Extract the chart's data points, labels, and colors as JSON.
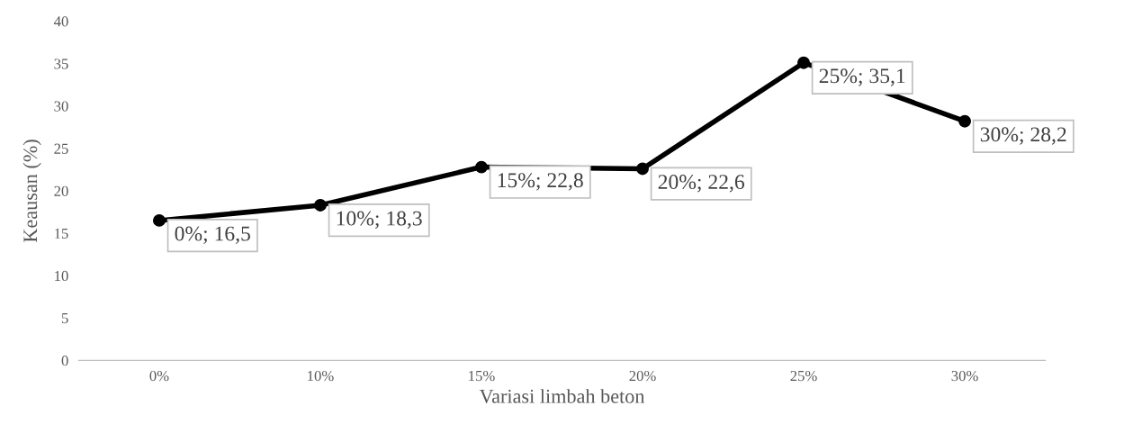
{
  "chart_data": {
    "type": "line",
    "xlabel": "Variasi limbah beton",
    "ylabel": "Keausan (%)",
    "categories": [
      "0%",
      "10%",
      "15%",
      "20%",
      "25%",
      "30%"
    ],
    "series": [
      {
        "color": "#000000",
        "values": [
          16.5,
          18.3,
          22.8,
          22.6,
          35.1,
          28.2
        ],
        "value_labels": [
          "0%; 16,5",
          "10%; 18,3",
          "15%; 22,8",
          "20%; 22,6",
          "25%; 35,1",
          "30%; 28,2"
        ]
      }
    ],
    "ylim": [
      0,
      40
    ],
    "yticks": [
      0,
      5,
      10,
      15,
      20,
      25,
      30,
      35,
      40
    ],
    "grid": false,
    "marker": "circle",
    "line_style": "solid"
  }
}
